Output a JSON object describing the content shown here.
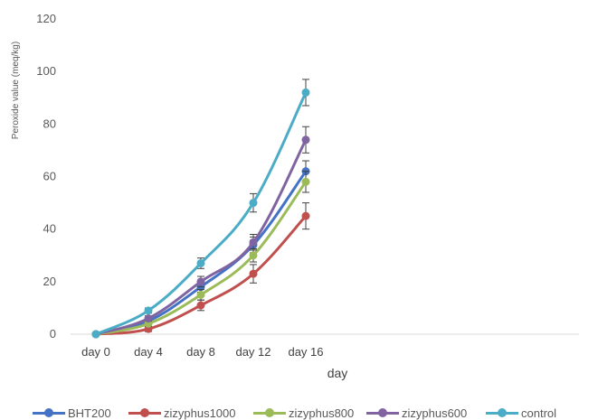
{
  "chart_data": {
    "type": "line",
    "title": "",
    "xlabel": "day",
    "ylabel": "Peroxide value (meq/kg)",
    "categories": [
      "day 0",
      "day 4",
      "day 8",
      "day 12",
      "day 16"
    ],
    "ylim": [
      0,
      120
    ],
    "yticks": [
      0,
      20,
      40,
      60,
      80,
      100,
      120
    ],
    "grid": false,
    "legend_position": "bottom",
    "series": [
      {
        "name": "BHT200",
        "color": "#4472C4",
        "values": [
          0,
          5,
          18,
          34,
          62
        ],
        "errors": [
          0,
          1,
          2,
          3,
          4
        ]
      },
      {
        "name": "zizyphus1000",
        "color": "#C0504D",
        "values": [
          0,
          2,
          11,
          23,
          45
        ],
        "errors": [
          0,
          1,
          2,
          3.5,
          5
        ]
      },
      {
        "name": "zizyphus800",
        "color": "#9BBB59",
        "values": [
          0,
          4,
          15,
          30,
          58
        ],
        "errors": [
          0,
          1,
          2,
          2.5,
          4
        ]
      },
      {
        "name": "zizyphus600",
        "color": "#8064A2",
        "values": [
          0,
          6,
          20,
          35,
          74
        ],
        "errors": [
          0,
          1,
          2,
          3,
          5
        ]
      },
      {
        "name": "control",
        "color": "#4BACC6",
        "values": [
          0,
          9,
          27,
          50,
          92
        ],
        "errors": [
          0,
          1,
          2,
          3.5,
          5
        ]
      }
    ]
  }
}
